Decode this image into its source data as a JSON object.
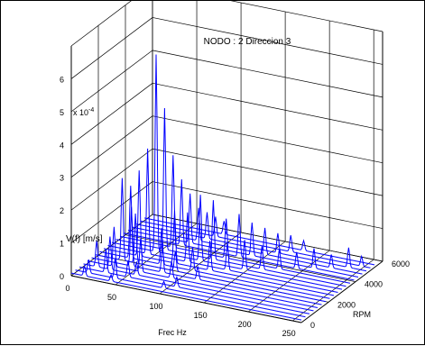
{
  "chart_data": {
    "type": "waterfall",
    "title": "NODO : 2   Direccion 3",
    "xlabel": "Frec  Hz",
    "ylabel": "RPM",
    "zlabel": "V(f)   [m/s]",
    "z_exponent": "x 10",
    "z_exponent_power": "-4",
    "x_ticks": [
      "0",
      "50",
      "100",
      "150",
      "200",
      "250"
    ],
    "y_ticks": [
      "0",
      "2000",
      "4000",
      "6000"
    ],
    "z_ticks": [
      "0",
      "1",
      "2",
      "3",
      "4",
      "5",
      "6"
    ],
    "xlim": [
      0,
      260
    ],
    "ylim": [
      0,
      6000
    ],
    "zlim": [
      0,
      7
    ],
    "grid": true,
    "line_color": "#0000ff",
    "rpm_slices": [
      0,
      300,
      600,
      900,
      1200,
      1500,
      1800,
      2100,
      2400,
      2700,
      3000,
      3300,
      3600,
      3900,
      4200,
      4500,
      4800,
      5100,
      5400
    ],
    "peaks_1e_minus_4": [
      [
        {
          "f": 15,
          "v": 0.3
        },
        {
          "f": 45,
          "v": 0.2
        }
      ],
      [
        {
          "f": 15,
          "v": 0.4
        },
        {
          "f": 45,
          "v": 0.6
        },
        {
          "f": 100,
          "v": 0.2
        }
      ],
      [
        {
          "f": 30,
          "v": 0.7
        },
        {
          "f": 55,
          "v": 0.5
        },
        {
          "f": 110,
          "v": 0.3
        }
      ],
      [
        {
          "f": 15,
          "v": 0.8
        },
        {
          "f": 30,
          "v": 1.0
        },
        {
          "f": 60,
          "v": 0.4
        }
      ],
      [
        {
          "f": 30,
          "v": 1.2
        },
        {
          "f": 60,
          "v": 1.0
        },
        {
          "f": 95,
          "v": 0.5
        }
      ],
      [
        {
          "f": 45,
          "v": 1.8
        },
        {
          "f": 80,
          "v": 0.8
        },
        {
          "f": 120,
          "v": 0.4
        }
      ],
      [
        {
          "f": 30,
          "v": 2.5
        },
        {
          "f": 45,
          "v": 1.5
        },
        {
          "f": 90,
          "v": 0.6
        }
      ],
      [
        {
          "f": 35,
          "v": 2.2
        },
        {
          "f": 70,
          "v": 1.1
        },
        {
          "f": 105,
          "v": 0.7
        }
      ],
      [
        {
          "f": 40,
          "v": 2.6
        },
        {
          "f": 80,
          "v": 1.6
        },
        {
          "f": 120,
          "v": 0.9
        }
      ],
      [
        {
          "f": 45,
          "v": 3.2
        },
        {
          "f": 90,
          "v": 1.5
        },
        {
          "f": 135,
          "v": 0.8
        }
      ],
      [
        {
          "f": 50,
          "v": 6.0
        },
        {
          "f": 100,
          "v": 2.0
        },
        {
          "f": 150,
          "v": 0.9
        }
      ],
      [
        {
          "f": 55,
          "v": 4.3
        },
        {
          "f": 110,
          "v": 1.8
        },
        {
          "f": 165,
          "v": 0.7
        }
      ],
      [
        {
          "f": 60,
          "v": 2.8
        },
        {
          "f": 120,
          "v": 1.2
        },
        {
          "f": 180,
          "v": 0.6
        }
      ],
      [
        {
          "f": 65,
          "v": 2.0
        },
        {
          "f": 130,
          "v": 1.3
        },
        {
          "f": 195,
          "v": 0.5
        }
      ],
      [
        {
          "f": 70,
          "v": 1.5
        },
        {
          "f": 140,
          "v": 1.0
        },
        {
          "f": 210,
          "v": 0.6
        }
      ],
      [
        {
          "f": 75,
          "v": 1.0
        },
        {
          "f": 150,
          "v": 0.8
        },
        {
          "f": 225,
          "v": 0.4
        }
      ],
      [
        {
          "f": 80,
          "v": 0.8
        },
        {
          "f": 160,
          "v": 0.6
        },
        {
          "f": 240,
          "v": 0.6
        }
      ],
      [
        {
          "f": 85,
          "v": 0.6
        },
        {
          "f": 170,
          "v": 0.5
        },
        {
          "f": 250,
          "v": 0.3
        }
      ],
      [
        {
          "f": 90,
          "v": 0.4
        },
        {
          "f": 180,
          "v": 0.3
        }
      ]
    ]
  }
}
